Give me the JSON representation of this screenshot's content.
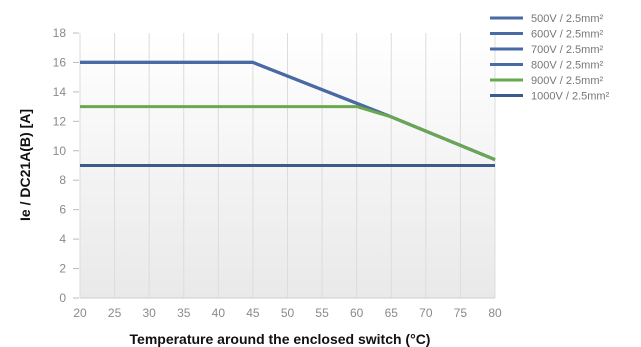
{
  "chart_data": {
    "type": "line",
    "xlabel": "Temperature around the enclosed switch (°C)",
    "ylabel": "Ie / DC21A(B) [A]",
    "x": [
      20,
      25,
      30,
      35,
      40,
      45,
      50,
      55,
      60,
      65,
      70,
      75,
      80
    ],
    "xlim": [
      20,
      80
    ],
    "ylim": [
      0,
      18
    ],
    "yticks": [
      0,
      2,
      4,
      6,
      8,
      10,
      12,
      14,
      16,
      18
    ],
    "grid": "vertical",
    "legend": "top-right",
    "series": [
      {
        "name": "500V / 2.5mm²",
        "color": "#4a6aa6",
        "points": [
          [
            20,
            16
          ],
          [
            45,
            16
          ],
          [
            65,
            12.3
          ],
          [
            80,
            9.4
          ]
        ]
      },
      {
        "name": "600V / 2.5mm²",
        "color": "#4a6aa6",
        "points": [
          [
            20,
            16
          ],
          [
            45,
            16
          ],
          [
            65,
            12.3
          ],
          [
            80,
            9.4
          ]
        ]
      },
      {
        "name": "700V / 2.5mm²",
        "color": "#4a6aa6",
        "points": [
          [
            20,
            16
          ],
          [
            45,
            16
          ],
          [
            65,
            12.3
          ],
          [
            80,
            9.4
          ]
        ]
      },
      {
        "name": "800V / 2.5mm²",
        "color": "#4a6aa6",
        "points": [
          [
            20,
            16
          ],
          [
            45,
            16
          ],
          [
            65,
            12.3
          ],
          [
            80,
            9.4
          ]
        ]
      },
      {
        "name": "900V / 2.5mm²",
        "color": "#6aa84f",
        "points": [
          [
            20,
            13
          ],
          [
            60,
            13
          ],
          [
            65,
            12.3
          ],
          [
            80,
            9.4
          ]
        ]
      },
      {
        "name": "1000V / 2.5mm²",
        "color": "#3b5b8c",
        "points": [
          [
            20,
            9
          ],
          [
            80,
            9
          ]
        ]
      }
    ]
  }
}
